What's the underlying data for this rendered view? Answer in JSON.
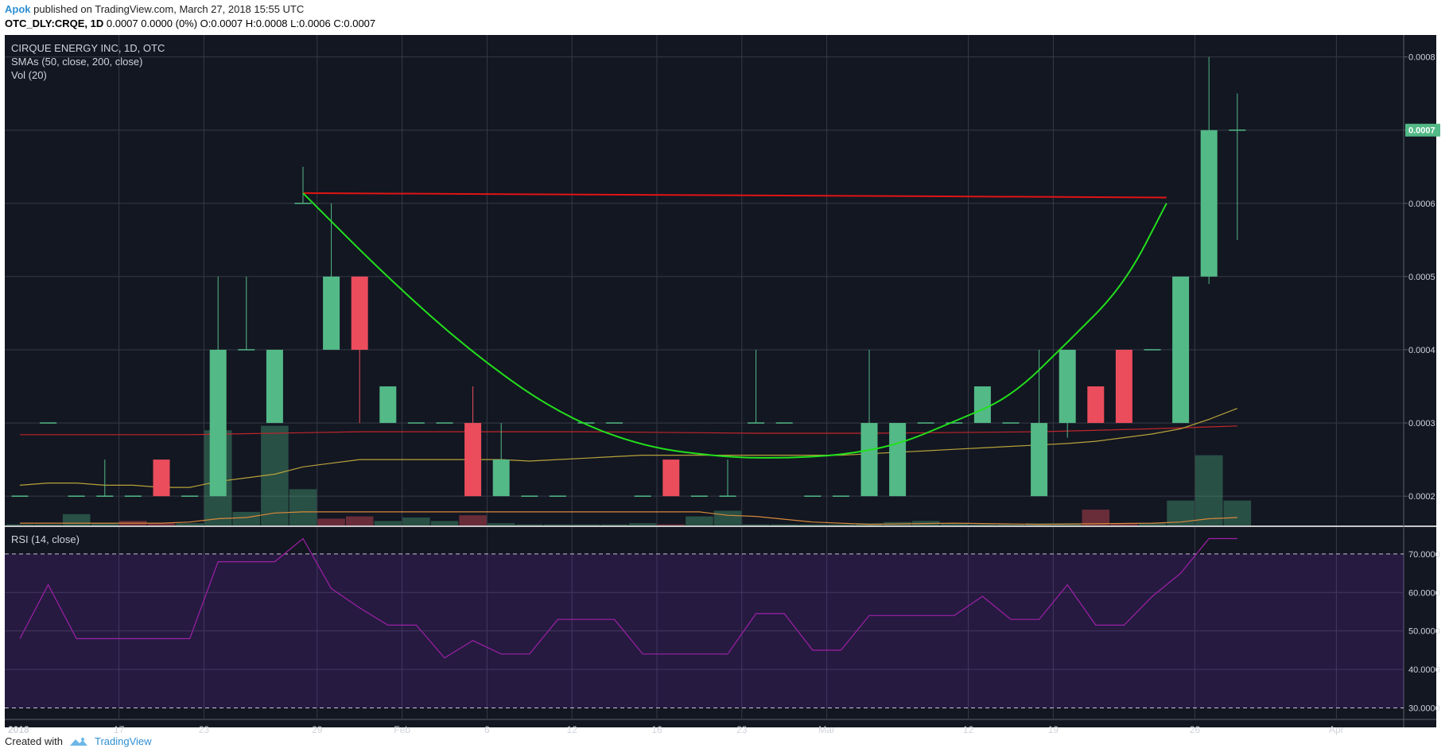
{
  "header": {
    "author": "Apok",
    "published_text": "published on TradingView.com, March 27, 2018 15:55 UTC",
    "symbol": "OTC_DLY:CRQE, 1D",
    "ohlc_text": "0.0007 0.0000 (0%) O:0.0007 H:0.0008 L:0.0006 C:0.0007"
  },
  "legend": {
    "title": "CIRQUE ENERGY INC, 1D, OTC",
    "smas": "SMAs (50, close, 200, close)",
    "vol": "Vol (20)",
    "rsi": "RSI (14, close)"
  },
  "footer": {
    "created_with": "Created with",
    "brand": "TradingView"
  },
  "colors": {
    "background": "#131722",
    "grid": "#363a45",
    "up": "#53b987",
    "down": "#eb4d5c",
    "sma50": "#b7a23a",
    "sma200": "#c0262a",
    "volma": "#d8893b",
    "rsi": "#a020a6",
    "rsi_band": "#2a1a45",
    "cup": "#22e01c",
    "resistance": "#e01414",
    "last_price_bg": "#53b987"
  },
  "chart_data": [
    {
      "type": "candlestick",
      "title": "CIRQUE ENERGY INC, 1D, OTC",
      "ylim": [
        0.00016,
        0.00083
      ],
      "y_ticks": [
        "0.0002",
        "0.0003",
        "0.0004",
        "0.0005",
        "0.0006",
        "0.0007",
        "0.0008"
      ],
      "x_tick_labels": [
        "2018",
        "17",
        "23",
        "29",
        "Feb",
        "6",
        "12",
        "16",
        "23",
        "Mar",
        "12",
        "19",
        "26",
        "Apr"
      ],
      "last_price_label": "0.0007",
      "candles": [
        {
          "d": 0,
          "o": 0.0002,
          "h": 0.0002,
          "l": 0.0002,
          "c": 0.0002
        },
        {
          "d": 1,
          "o": 0.0003,
          "h": 0.0003,
          "l": 0.0003,
          "c": 0.0003
        },
        {
          "d": 2,
          "o": 0.0002,
          "h": 0.0002,
          "l": 0.0002,
          "c": 0.0002
        },
        {
          "d": 3,
          "o": 0.0002,
          "h": 0.00025,
          "l": 0.0002,
          "c": 0.0002
        },
        {
          "d": 4,
          "o": 0.0002,
          "h": 0.0002,
          "l": 0.0002,
          "c": 0.0002
        },
        {
          "d": 5,
          "o": 0.00025,
          "h": 0.00025,
          "l": 0.0002,
          "c": 0.0002
        },
        {
          "d": 6,
          "o": 0.0002,
          "h": 0.0002,
          "l": 0.0002,
          "c": 0.0002
        },
        {
          "d": 7,
          "o": 0.0002,
          "h": 0.0005,
          "l": 0.0002,
          "c": 0.0004
        },
        {
          "d": 8,
          "o": 0.0004,
          "h": 0.0005,
          "l": 0.0004,
          "c": 0.0004
        },
        {
          "d": 9,
          "o": 0.0003,
          "h": 0.0004,
          "l": 0.0003,
          "c": 0.0004
        },
        {
          "d": 10,
          "o": 0.0006,
          "h": 0.00065,
          "l": 0.0006,
          "c": 0.0006
        },
        {
          "d": 11,
          "o": 0.0004,
          "h": 0.0006,
          "l": 0.0004,
          "c": 0.0005
        },
        {
          "d": 12,
          "o": 0.0005,
          "h": 0.0005,
          "l": 0.0003,
          "c": 0.0004
        },
        {
          "d": 13,
          "o": 0.0003,
          "h": 0.00035,
          "l": 0.0003,
          "c": 0.00035
        },
        {
          "d": 14,
          "o": 0.0003,
          "h": 0.0003,
          "l": 0.0003,
          "c": 0.0003
        },
        {
          "d": 15,
          "o": 0.0003,
          "h": 0.0003,
          "l": 0.0003,
          "c": 0.0003
        },
        {
          "d": 16,
          "o": 0.0003,
          "h": 0.00035,
          "l": 0.0002,
          "c": 0.0002
        },
        {
          "d": 17,
          "o": 0.0002,
          "h": 0.0003,
          "l": 0.0002,
          "c": 0.00025
        },
        {
          "d": 18,
          "o": 0.0002,
          "h": 0.0002,
          "l": 0.0002,
          "c": 0.0002
        },
        {
          "d": 19,
          "o": 0.0002,
          "h": 0.0002,
          "l": 0.0002,
          "c": 0.0002
        },
        {
          "d": 20,
          "o": 0.0003,
          "h": 0.0003,
          "l": 0.0003,
          "c": 0.0003
        },
        {
          "d": 21,
          "o": 0.0003,
          "h": 0.0003,
          "l": 0.0003,
          "c": 0.0003
        },
        {
          "d": 22,
          "o": 0.0002,
          "h": 0.0002,
          "l": 0.0002,
          "c": 0.0002
        },
        {
          "d": 23,
          "o": 0.00025,
          "h": 0.00025,
          "l": 0.0002,
          "c": 0.0002
        },
        {
          "d": 24,
          "o": 0.0002,
          "h": 0.0002,
          "l": 0.0002,
          "c": 0.0002
        },
        {
          "d": 25,
          "o": 0.0002,
          "h": 0.00025,
          "l": 0.0002,
          "c": 0.0002
        },
        {
          "d": 26,
          "o": 0.0003,
          "h": 0.0004,
          "l": 0.0003,
          "c": 0.0003
        },
        {
          "d": 27,
          "o": 0.0003,
          "h": 0.0003,
          "l": 0.0003,
          "c": 0.0003
        },
        {
          "d": 28,
          "o": 0.0002,
          "h": 0.0002,
          "l": 0.0002,
          "c": 0.0002
        },
        {
          "d": 29,
          "o": 0.0002,
          "h": 0.0002,
          "l": 0.0002,
          "c": 0.0002
        },
        {
          "d": 30,
          "o": 0.0002,
          "h": 0.0004,
          "l": 0.0002,
          "c": 0.0003
        },
        {
          "d": 31,
          "o": 0.0002,
          "h": 0.0003,
          "l": 0.0002,
          "c": 0.0003
        },
        {
          "d": 32,
          "o": 0.0003,
          "h": 0.0003,
          "l": 0.0003,
          "c": 0.0003
        },
        {
          "d": 33,
          "o": 0.0003,
          "h": 0.0003,
          "l": 0.0003,
          "c": 0.0003
        },
        {
          "d": 34,
          "o": 0.0003,
          "h": 0.00035,
          "l": 0.0003,
          "c": 0.00035
        },
        {
          "d": 35,
          "o": 0.0003,
          "h": 0.0003,
          "l": 0.0003,
          "c": 0.0003
        },
        {
          "d": 36,
          "o": 0.0002,
          "h": 0.0004,
          "l": 0.0002,
          "c": 0.0003
        },
        {
          "d": 37,
          "o": 0.0003,
          "h": 0.0004,
          "l": 0.00028,
          "c": 0.0004
        },
        {
          "d": 38,
          "o": 0.00035,
          "h": 0.00035,
          "l": 0.0003,
          "c": 0.0003
        },
        {
          "d": 39,
          "o": 0.0004,
          "h": 0.0004,
          "l": 0.0003,
          "c": 0.0003
        },
        {
          "d": 40,
          "o": 0.0004,
          "h": 0.0004,
          "l": 0.0004,
          "c": 0.0004
        },
        {
          "d": 41,
          "o": 0.0003,
          "h": 0.0005,
          "l": 0.0003,
          "c": 0.0005
        },
        {
          "d": 42,
          "o": 0.0005,
          "h": 0.0008,
          "l": 0.00049,
          "c": 0.0007
        },
        {
          "d": 43,
          "o": 0.0007,
          "h": 0.00075,
          "l": 0.00055,
          "c": 0.0007
        }
      ],
      "sma50": [
        [
          0,
          0.000215
        ],
        [
          1,
          0.000218
        ],
        [
          2,
          0.000218
        ],
        [
          3,
          0.000215
        ],
        [
          4,
          0.000215
        ],
        [
          5,
          0.000212
        ],
        [
          6,
          0.000212
        ],
        [
          7,
          0.00022
        ],
        [
          8,
          0.000225
        ],
        [
          9,
          0.00023
        ],
        [
          10,
          0.00024
        ],
        [
          11,
          0.000245
        ],
        [
          12,
          0.00025
        ],
        [
          13,
          0.00025
        ],
        [
          14,
          0.00025
        ],
        [
          15,
          0.00025
        ],
        [
          16,
          0.00025
        ],
        [
          17,
          0.00025
        ],
        [
          18,
          0.000248
        ],
        [
          19,
          0.00025
        ],
        [
          20,
          0.000252
        ],
        [
          21,
          0.000254
        ],
        [
          22,
          0.000256
        ],
        [
          23,
          0.000256
        ],
        [
          24,
          0.000256
        ],
        [
          25,
          0.000256
        ],
        [
          26,
          0.000256
        ],
        [
          27,
          0.000256
        ],
        [
          28,
          0.000256
        ],
        [
          29,
          0.000256
        ],
        [
          30,
          0.000258
        ],
        [
          31,
          0.00026
        ],
        [
          32,
          0.000262
        ],
        [
          33,
          0.000264
        ],
        [
          34,
          0.000266
        ],
        [
          35,
          0.000268
        ],
        [
          36,
          0.00027
        ],
        [
          37,
          0.000272
        ],
        [
          38,
          0.000275
        ],
        [
          39,
          0.00028
        ],
        [
          40,
          0.000285
        ],
        [
          41,
          0.000292
        ],
        [
          42,
          0.000305
        ],
        [
          43,
          0.00032
        ]
      ],
      "sma200": [
        [
          0,
          0.000284
        ],
        [
          6,
          0.000284
        ],
        [
          12,
          0.000288
        ],
        [
          20,
          0.000288
        ],
        [
          26,
          0.000286
        ],
        [
          30,
          0.000286
        ],
        [
          36,
          0.000288
        ],
        [
          40,
          0.000292
        ],
        [
          43,
          0.000296
        ]
      ],
      "annotations": {
        "resistance_line": [
          [
            10,
            0.000614
          ],
          [
            40.5,
            0.000608
          ]
        ],
        "cup_points": [
          [
            10,
            0.000614
          ],
          [
            13,
            0.000498
          ],
          [
            16,
            0.000395
          ],
          [
            19,
            0.000313
          ],
          [
            22,
            0.000267
          ],
          [
            25,
            0.000253
          ],
          [
            27,
            0.000252
          ],
          [
            29,
            0.000256
          ],
          [
            31,
            0.00027
          ],
          [
            33,
            0.000302
          ],
          [
            35,
            0.000335
          ],
          [
            37,
            0.00041
          ],
          [
            39,
            0.000488
          ],
          [
            40.5,
            0.0006
          ]
        ]
      }
    },
    {
      "type": "bar",
      "title": "Vol (20)",
      "volumes": [
        {
          "d": 0,
          "v": 0.5,
          "up": true
        },
        {
          "d": 1,
          "v": 0.5,
          "up": true
        },
        {
          "d": 2,
          "v": 5,
          "up": true
        },
        {
          "d": 3,
          "v": 1,
          "up": true
        },
        {
          "d": 4,
          "v": 2,
          "up": false
        },
        {
          "d": 5,
          "v": 1,
          "up": false
        },
        {
          "d": 6,
          "v": 1,
          "up": true
        },
        {
          "d": 7,
          "v": 42,
          "up": true
        },
        {
          "d": 8,
          "v": 6,
          "up": true
        },
        {
          "d": 9,
          "v": 44,
          "up": true
        },
        {
          "d": 10,
          "v": 16,
          "up": true
        },
        {
          "d": 11,
          "v": 3,
          "up": false
        },
        {
          "d": 12,
          "v": 4,
          "up": false
        },
        {
          "d": 13,
          "v": 2,
          "up": true
        },
        {
          "d": 14,
          "v": 3.5,
          "up": true
        },
        {
          "d": 15,
          "v": 2,
          "up": true
        },
        {
          "d": 16,
          "v": 4.5,
          "up": false
        },
        {
          "d": 17,
          "v": 1,
          "up": true
        },
        {
          "d": 18,
          "v": 0.5,
          "up": true
        },
        {
          "d": 19,
          "v": 0.5,
          "up": true
        },
        {
          "d": 20,
          "v": 0.5,
          "up": true
        },
        {
          "d": 21,
          "v": 0.5,
          "up": true
        },
        {
          "d": 22,
          "v": 1,
          "up": true
        },
        {
          "d": 23,
          "v": 0.5,
          "up": false
        },
        {
          "d": 24,
          "v": 4,
          "up": true
        },
        {
          "d": 25,
          "v": 6.5,
          "up": true
        },
        {
          "d": 26,
          "v": 0.5,
          "up": true
        },
        {
          "d": 27,
          "v": 0.5,
          "up": true
        },
        {
          "d": 28,
          "v": 0.5,
          "up": true
        },
        {
          "d": 29,
          "v": 0.5,
          "up": true
        },
        {
          "d": 30,
          "v": 1,
          "up": true
        },
        {
          "d": 31,
          "v": 1.5,
          "up": true
        },
        {
          "d": 32,
          "v": 2,
          "up": true
        },
        {
          "d": 33,
          "v": 1,
          "up": true
        },
        {
          "d": 34,
          "v": 0.5,
          "up": true
        },
        {
          "d": 35,
          "v": 0.5,
          "up": true
        },
        {
          "d": 36,
          "v": 1,
          "up": true
        },
        {
          "d": 37,
          "v": 1,
          "up": true
        },
        {
          "d": 38,
          "v": 7,
          "up": false
        },
        {
          "d": 39,
          "v": 1,
          "up": false
        },
        {
          "d": 40,
          "v": 1,
          "up": true
        },
        {
          "d": 41,
          "v": 11,
          "up": true
        },
        {
          "d": 42,
          "v": 31,
          "up": true
        },
        {
          "d": 43,
          "v": 11,
          "up": true
        }
      ],
      "vol_ma": [
        [
          0,
          1
        ],
        [
          5,
          1
        ],
        [
          6,
          1.5
        ],
        [
          7,
          3
        ],
        [
          8,
          3.5
        ],
        [
          9,
          5.5
        ],
        [
          10,
          6
        ],
        [
          12,
          6
        ],
        [
          15,
          6
        ],
        [
          16,
          6
        ],
        [
          20,
          6
        ],
        [
          24,
          6
        ],
        [
          25,
          4.5
        ],
        [
          26,
          4
        ],
        [
          28,
          1.5
        ],
        [
          30,
          0.5
        ],
        [
          33,
          1
        ],
        [
          36,
          0.5
        ],
        [
          40,
          1
        ],
        [
          41,
          1.5
        ],
        [
          42,
          3
        ],
        [
          43,
          3.5
        ]
      ]
    },
    {
      "type": "line",
      "title": "RSI (14, close)",
      "ylim": [
        27,
        77
      ],
      "y_ticks": [
        "30.0000",
        "40.0000",
        "50.0000",
        "60.0000",
        "70.0000"
      ],
      "band": [
        30,
        70
      ],
      "values": [
        [
          0,
          48
        ],
        [
          1,
          62
        ],
        [
          2,
          48
        ],
        [
          3,
          48
        ],
        [
          4,
          48
        ],
        [
          5,
          48
        ],
        [
          6,
          48
        ],
        [
          7,
          68
        ],
        [
          8,
          68
        ],
        [
          9,
          68
        ],
        [
          10,
          74
        ],
        [
          11,
          61
        ],
        [
          12,
          56
        ],
        [
          13,
          51.5
        ],
        [
          14,
          51.5
        ],
        [
          15,
          43
        ],
        [
          16,
          47.5
        ],
        [
          17,
          44
        ],
        [
          18,
          44
        ],
        [
          19,
          53
        ],
        [
          20,
          53
        ],
        [
          21,
          53
        ],
        [
          22,
          44
        ],
        [
          23,
          44
        ],
        [
          24,
          44
        ],
        [
          25,
          44
        ],
        [
          26,
          54.5
        ],
        [
          27,
          54.5
        ],
        [
          28,
          45
        ],
        [
          29,
          45
        ],
        [
          30,
          54
        ],
        [
          31,
          54
        ],
        [
          32,
          54
        ],
        [
          33,
          54
        ],
        [
          34,
          59
        ],
        [
          35,
          53
        ],
        [
          36,
          53
        ],
        [
          37,
          62
        ],
        [
          38,
          51.5
        ],
        [
          39,
          51.5
        ],
        [
          40,
          59
        ],
        [
          41,
          65
        ],
        [
          42,
          74
        ],
        [
          43,
          74
        ]
      ]
    }
  ]
}
